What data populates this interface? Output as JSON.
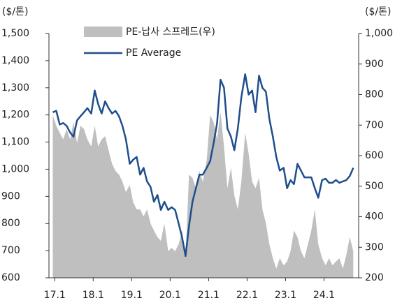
{
  "chart_data": {
    "type": "line",
    "ylabel": "($/톤)",
    "y2label": "($/톤)",
    "x": [
      2016.95,
      2017.04,
      2017.13,
      2017.22,
      2017.31,
      2017.4,
      2017.49,
      2017.58,
      2017.67,
      2017.76,
      2017.85,
      2017.95,
      2018.04,
      2018.13,
      2018.22,
      2018.31,
      2018.4,
      2018.49,
      2018.58,
      2018.67,
      2018.76,
      2018.85,
      2018.95,
      2019.04,
      2019.13,
      2019.22,
      2019.31,
      2019.4,
      2019.49,
      2019.58,
      2019.67,
      2019.76,
      2019.85,
      2019.95,
      2020.04,
      2020.13,
      2020.22,
      2020.31,
      2020.4,
      2020.49,
      2020.58,
      2020.67,
      2020.76,
      2020.85,
      2020.95,
      2021.04,
      2021.13,
      2021.22,
      2021.31,
      2021.4,
      2021.49,
      2021.58,
      2021.67,
      2021.76,
      2021.85,
      2021.95,
      2022.04,
      2022.13,
      2022.22,
      2022.31,
      2022.4,
      2022.49,
      2022.58,
      2022.67,
      2022.76,
      2022.85,
      2022.95,
      2023.04,
      2023.13,
      2023.22,
      2023.31,
      2023.4,
      2023.49,
      2023.58,
      2023.67,
      2023.76,
      2023.85,
      2023.95,
      2024.04,
      2024.13,
      2024.22,
      2024.31,
      2024.4,
      2024.49,
      2024.58,
      2024.67,
      2024.76
    ],
    "series": [
      {
        "name": "PE-납사 스프레드(우)",
        "type": "area",
        "axis": "y2",
        "color": "#bfbfbf",
        "values": [
          733,
          698,
          675,
          653,
          687,
          653,
          710,
          641,
          698,
          687,
          653,
          630,
          698,
          630,
          653,
          664,
          618,
          573,
          550,
          538,
          515,
          481,
          504,
          447,
          424,
          424,
          401,
          424,
          378,
          355,
          333,
          321,
          378,
          287,
          298,
          287,
          310,
          355,
          264,
          538,
          527,
          493,
          550,
          515,
          584,
          733,
          710,
          653,
          744,
          630,
          493,
          560,
          470,
          424,
          515,
          675,
          607,
          515,
          493,
          527,
          424,
          378,
          310,
          264,
          230,
          264,
          241,
          253,
          287,
          355,
          333,
          287,
          264,
          310,
          355,
          424,
          310,
          264,
          241,
          264,
          241,
          253,
          264,
          230,
          275,
          333,
          287
        ]
      },
      {
        "name": "PE Average",
        "color": "#1f4e8c",
        "values": [
          1210,
          1215,
          1165,
          1170,
          1160,
          1135,
          1120,
          1180,
          1195,
          1210,
          1225,
          1205,
          1290,
          1240,
          1205,
          1250,
          1225,
          1205,
          1215,
          1195,
          1160,
          1110,
          1020,
          1035,
          1045,
          980,
          1005,
          955,
          935,
          880,
          905,
          850,
          880,
          850,
          860,
          850,
          800,
          750,
          680,
          790,
          880,
          930,
          980,
          980,
          1005,
          1030,
          1095,
          1170,
          1330,
          1300,
          1150,
          1120,
          1070,
          1150,
          1265,
          1350,
          1275,
          1290,
          1210,
          1345,
          1300,
          1285,
          1185,
          1120,
          1045,
          995,
          1005,
          930,
          960,
          945,
          1020,
          995,
          970,
          970,
          970,
          930,
          895,
          960,
          965,
          950,
          950,
          960,
          950,
          955,
          960,
          975,
          1005
        ]
      }
    ],
    "xlim": [
      2016.85,
      2024.9
    ],
    "xticks": [
      {
        "value": 2017,
        "label": "17.1"
      },
      {
        "value": 2018,
        "label": "18.1"
      },
      {
        "value": 2019,
        "label": "19.1"
      },
      {
        "value": 2020,
        "label": "20.1"
      },
      {
        "value": 2021,
        "label": "21.1"
      },
      {
        "value": 2022,
        "label": "22.1"
      },
      {
        "value": 2023,
        "label": "23.1"
      },
      {
        "value": 2024,
        "label": "24.1"
      }
    ],
    "ylim": [
      600,
      1500
    ],
    "yticks": [
      600,
      700,
      800,
      900,
      {
        "value": 1000,
        "label": "1,000"
      },
      {
        "value": 1100,
        "label": "1,100"
      },
      {
        "value": 1200,
        "label": "1,200"
      },
      {
        "value": 1300,
        "label": "1,300"
      },
      {
        "value": 1400,
        "label": "1,400"
      },
      {
        "value": 1500,
        "label": "1,500"
      }
    ],
    "y2lim": [
      200,
      1000
    ],
    "y2ticks": [
      200,
      300,
      400,
      500,
      600,
      700,
      800,
      900,
      {
        "value": 1000,
        "label": "1,000"
      }
    ]
  }
}
